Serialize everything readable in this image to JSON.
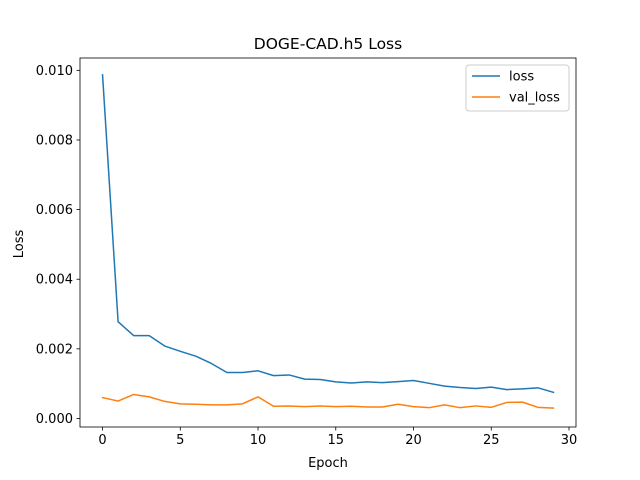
{
  "chart_data": {
    "type": "line",
    "title": "DOGE-CAD.h5 Loss",
    "xlabel": "Epoch",
    "ylabel": "Loss",
    "xlim": [
      -1.45,
      30.45
    ],
    "ylim": [
      -0.000245,
      0.010355
    ],
    "x_ticks": [
      0,
      5,
      10,
      15,
      20,
      25,
      30
    ],
    "x_tick_labels": [
      "0",
      "5",
      "10",
      "15",
      "20",
      "25",
      "30"
    ],
    "y_ticks": [
      0.0,
      0.002,
      0.004,
      0.006,
      0.008,
      0.01
    ],
    "y_tick_labels": [
      "0.000",
      "0.002",
      "0.004",
      "0.006",
      "0.008",
      "0.010"
    ],
    "grid": false,
    "legend_position": "upper right",
    "x": [
      0,
      1,
      2,
      3,
      4,
      5,
      6,
      7,
      8,
      9,
      10,
      11,
      12,
      13,
      14,
      15,
      16,
      17,
      18,
      19,
      20,
      21,
      22,
      23,
      24,
      25,
      26,
      27,
      28,
      29
    ],
    "series": [
      {
        "name": "loss",
        "color": "#1f77b4",
        "values": [
          0.00987,
          0.00278,
          0.00238,
          0.00238,
          0.00208,
          0.00193,
          0.00179,
          0.00158,
          0.00132,
          0.00132,
          0.00137,
          0.00123,
          0.00125,
          0.00113,
          0.00112,
          0.00105,
          0.00102,
          0.00105,
          0.00103,
          0.00106,
          0.00109,
          0.00101,
          0.00093,
          0.00089,
          0.00086,
          0.0009,
          0.00083,
          0.00085,
          0.00088,
          0.00075
        ]
      },
      {
        "name": "val_loss",
        "color": "#ff7f0e",
        "values": [
          0.0006,
          0.0005,
          0.00069,
          0.00062,
          0.00049,
          0.00042,
          0.00041,
          0.00039,
          0.00039,
          0.00042,
          0.00062,
          0.00035,
          0.00036,
          0.00034,
          0.00036,
          0.00034,
          0.00035,
          0.00033,
          0.00033,
          0.00041,
          0.00034,
          0.00031,
          0.00039,
          0.00031,
          0.00036,
          0.00032,
          0.00046,
          0.00047,
          0.00032,
          0.0003
        ]
      }
    ]
  }
}
